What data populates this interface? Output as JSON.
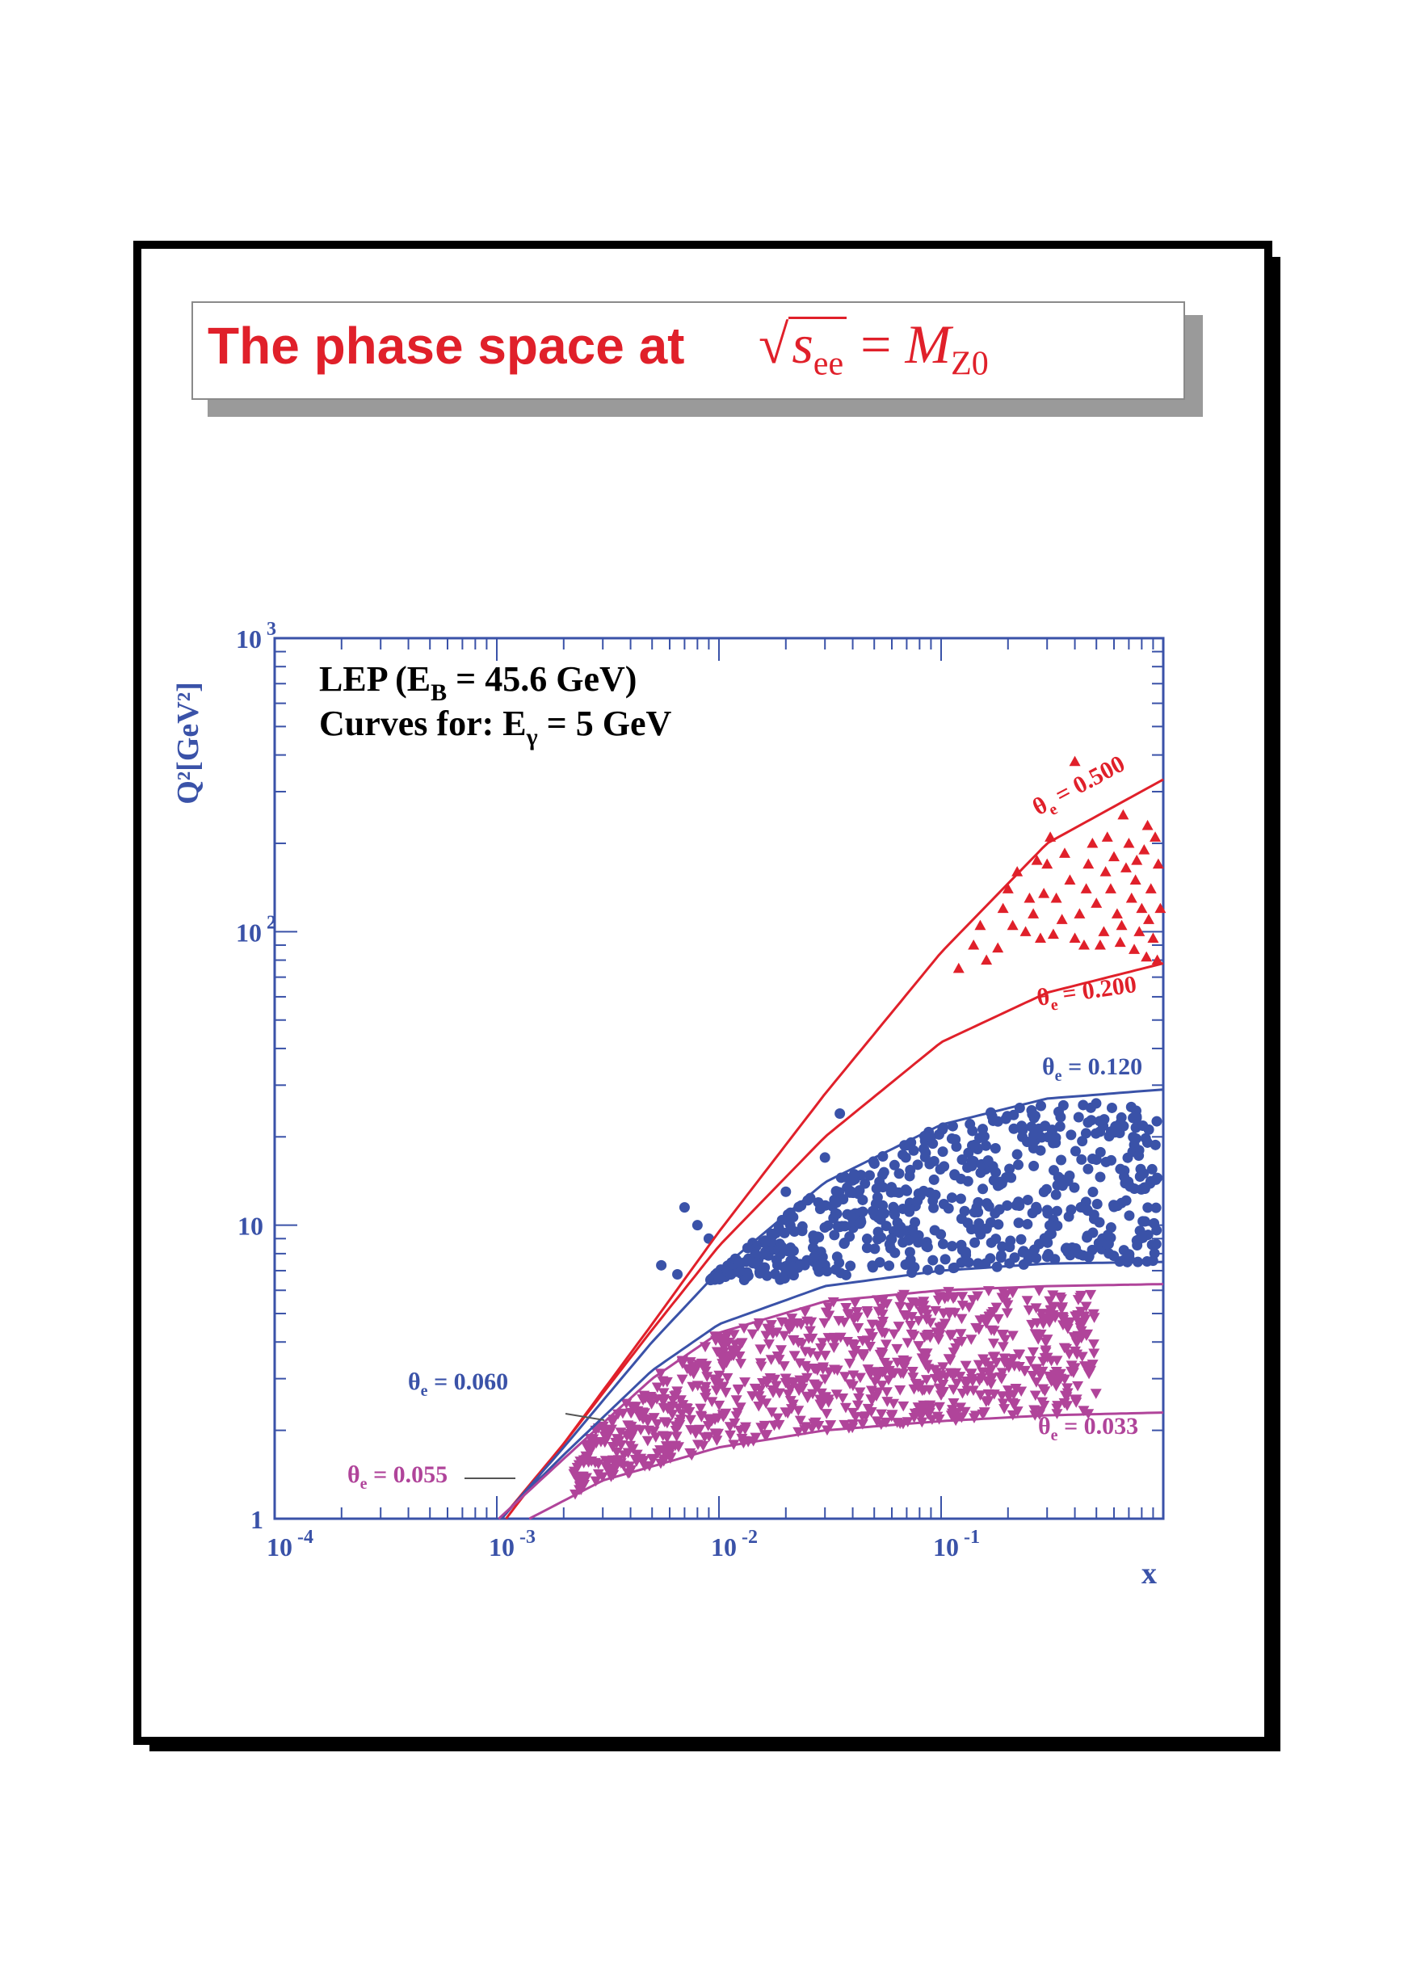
{
  "slide": {
    "title_text": "The phase space at",
    "title_formula": {
      "sqrt_var": "s",
      "sqrt_sub": "ee",
      "equals": "=",
      "rhs_var": "M",
      "rhs_sub": "Z0"
    }
  },
  "colors": {
    "red": "#e0202a",
    "blue": "#3a52a8",
    "magenta": "#b0449a",
    "axis": "#3a52a8",
    "frame": "#000000"
  },
  "chart_data": {
    "type": "scatter",
    "x_scale": "log",
    "y_scale": "log",
    "xlim": [
      0.0001,
      1
    ],
    "ylim": [
      1,
      1000
    ],
    "xlabel": "x",
    "ylabel": "Q²[GeV²]",
    "x_ticks": [
      "10 -4",
      "10 -3",
      "10 -2",
      "10 -1"
    ],
    "y_ticks": [
      "1",
      "10",
      "10 2",
      "10 3"
    ],
    "annotations": {
      "line1": "LEP (E",
      "line1_sub": "B",
      "line1_rest": " = 45.6 GeV)",
      "line2": "Curves for: E",
      "line2_sub": "γ",
      "line2_rest": " = 5 GeV"
    },
    "curves": [
      {
        "label": "θe = 0.500",
        "theta": "0.500",
        "color": "red",
        "points": [
          [
            0.0011,
            1
          ],
          [
            0.002,
            1.8
          ],
          [
            0.005,
            4.6
          ],
          [
            0.01,
            9.5
          ],
          [
            0.03,
            28
          ],
          [
            0.1,
            85
          ],
          [
            0.3,
            200
          ],
          [
            1,
            330
          ]
        ]
      },
      {
        "label": "θe = 0.200",
        "theta": "0.200",
        "color": "red",
        "points": [
          [
            0.00105,
            1
          ],
          [
            0.002,
            1.8
          ],
          [
            0.005,
            4.4
          ],
          [
            0.01,
            8.5
          ],
          [
            0.03,
            20
          ],
          [
            0.1,
            42
          ],
          [
            0.3,
            62
          ],
          [
            1,
            78
          ]
        ]
      },
      {
        "label": "θe = 0.120",
        "theta": "0.120",
        "color": "blue",
        "points": [
          [
            0.00105,
            1
          ],
          [
            0.002,
            1.75
          ],
          [
            0.005,
            4
          ],
          [
            0.01,
            7
          ],
          [
            0.03,
            14
          ],
          [
            0.1,
            22
          ],
          [
            0.3,
            27
          ],
          [
            1,
            29
          ]
        ]
      },
      {
        "label": "θe = 0.060",
        "theta": "0.060",
        "color": "blue",
        "points": [
          [
            0.00103,
            1
          ],
          [
            0.002,
            1.65
          ],
          [
            0.005,
            3.2
          ],
          [
            0.01,
            4.6
          ],
          [
            0.03,
            6.2
          ],
          [
            0.1,
            7
          ],
          [
            0.3,
            7.4
          ],
          [
            1,
            7.5
          ]
        ]
      },
      {
        "label": "θe = 0.055",
        "theta": "0.055",
        "color": "magenta",
        "points": [
          [
            0.00102,
            1
          ],
          [
            0.002,
            1.6
          ],
          [
            0.005,
            3
          ],
          [
            0.01,
            4.3
          ],
          [
            0.03,
            5.5
          ],
          [
            0.1,
            6
          ],
          [
            0.3,
            6.2
          ],
          [
            1,
            6.3
          ]
        ]
      },
      {
        "label": "θe = 0.033",
        "theta": "0.033",
        "color": "magenta",
        "points": [
          [
            0.0014,
            1
          ],
          [
            0.003,
            1.35
          ],
          [
            0.01,
            1.75
          ],
          [
            0.03,
            2.0
          ],
          [
            0.1,
            2.15
          ],
          [
            0.3,
            2.25
          ],
          [
            1,
            2.3
          ]
        ]
      }
    ],
    "series": [
      {
        "name": "θe 0.200–0.500",
        "marker": "triangle-up",
        "color": "red",
        "x_range": [
          0.1,
          1
        ],
        "y_ranges": "between θe=0.200 and θe=0.500",
        "points": [
          [
            0.18,
            88
          ],
          [
            0.21,
            105
          ],
          [
            0.25,
            130
          ],
          [
            0.3,
            170
          ],
          [
            0.35,
            110
          ],
          [
            0.4,
            95
          ],
          [
            0.45,
            140
          ],
          [
            0.5,
            125
          ],
          [
            0.55,
            160
          ],
          [
            0.6,
            180
          ],
          [
            0.65,
            105
          ],
          [
            0.7,
            200
          ],
          [
            0.75,
            150
          ],
          [
            0.8,
            120
          ],
          [
            0.85,
            230
          ],
          [
            0.9,
            95
          ],
          [
            0.95,
            170
          ],
          [
            0.12,
            75
          ],
          [
            0.14,
            90
          ],
          [
            0.16,
            80
          ],
          [
            0.2,
            140
          ],
          [
            0.24,
            100
          ],
          [
            0.28,
            95
          ],
          [
            0.33,
            130
          ],
          [
            0.38,
            150
          ],
          [
            0.42,
            115
          ],
          [
            0.48,
            200
          ],
          [
            0.52,
            90
          ],
          [
            0.58,
            140
          ],
          [
            0.62,
            115
          ],
          [
            0.68,
            165
          ],
          [
            0.72,
            130
          ],
          [
            0.78,
            100
          ],
          [
            0.82,
            190
          ],
          [
            0.88,
            140
          ],
          [
            0.92,
            210
          ],
          [
            0.97,
            120
          ],
          [
            0.26,
            115
          ],
          [
            0.36,
            185
          ],
          [
            0.46,
            170
          ],
          [
            0.56,
            210
          ],
          [
            0.66,
            250
          ],
          [
            0.76,
            175
          ],
          [
            0.86,
            110
          ],
          [
            0.15,
            105
          ],
          [
            0.22,
            160
          ],
          [
            0.32,
            98
          ],
          [
            0.44,
            90
          ],
          [
            0.54,
            100
          ],
          [
            0.64,
            92
          ],
          [
            0.74,
            87
          ],
          [
            0.84,
            82
          ],
          [
            0.94,
            80
          ],
          [
            0.4,
            380
          ],
          [
            0.29,
            135
          ],
          [
            0.19,
            120
          ],
          [
            0.31,
            210
          ],
          [
            0.27,
            175
          ]
        ]
      },
      {
        "name": "θe 0.060–0.120",
        "marker": "circle",
        "color": "blue",
        "x_range": [
          0.0045,
          1
        ],
        "points": []
      },
      {
        "name": "θe 0.033–0.055",
        "marker": "triangle-down",
        "color": "magenta",
        "x_range": [
          0.0018,
          0.5
        ],
        "points": []
      }
    ]
  }
}
